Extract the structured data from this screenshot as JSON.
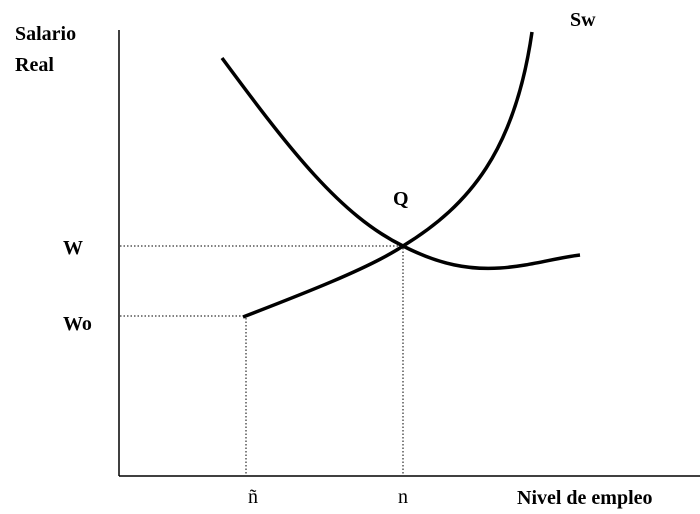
{
  "axis": {
    "y_label": [
      "Salario",
      "Real"
    ],
    "x_label": "Nivel de empleo"
  },
  "curves": {
    "supply_label": "Sw",
    "equilibrium_label": "Q"
  },
  "y_marks": [
    "W",
    "Wo"
  ],
  "x_marks": [
    "ñ",
    "n"
  ]
}
